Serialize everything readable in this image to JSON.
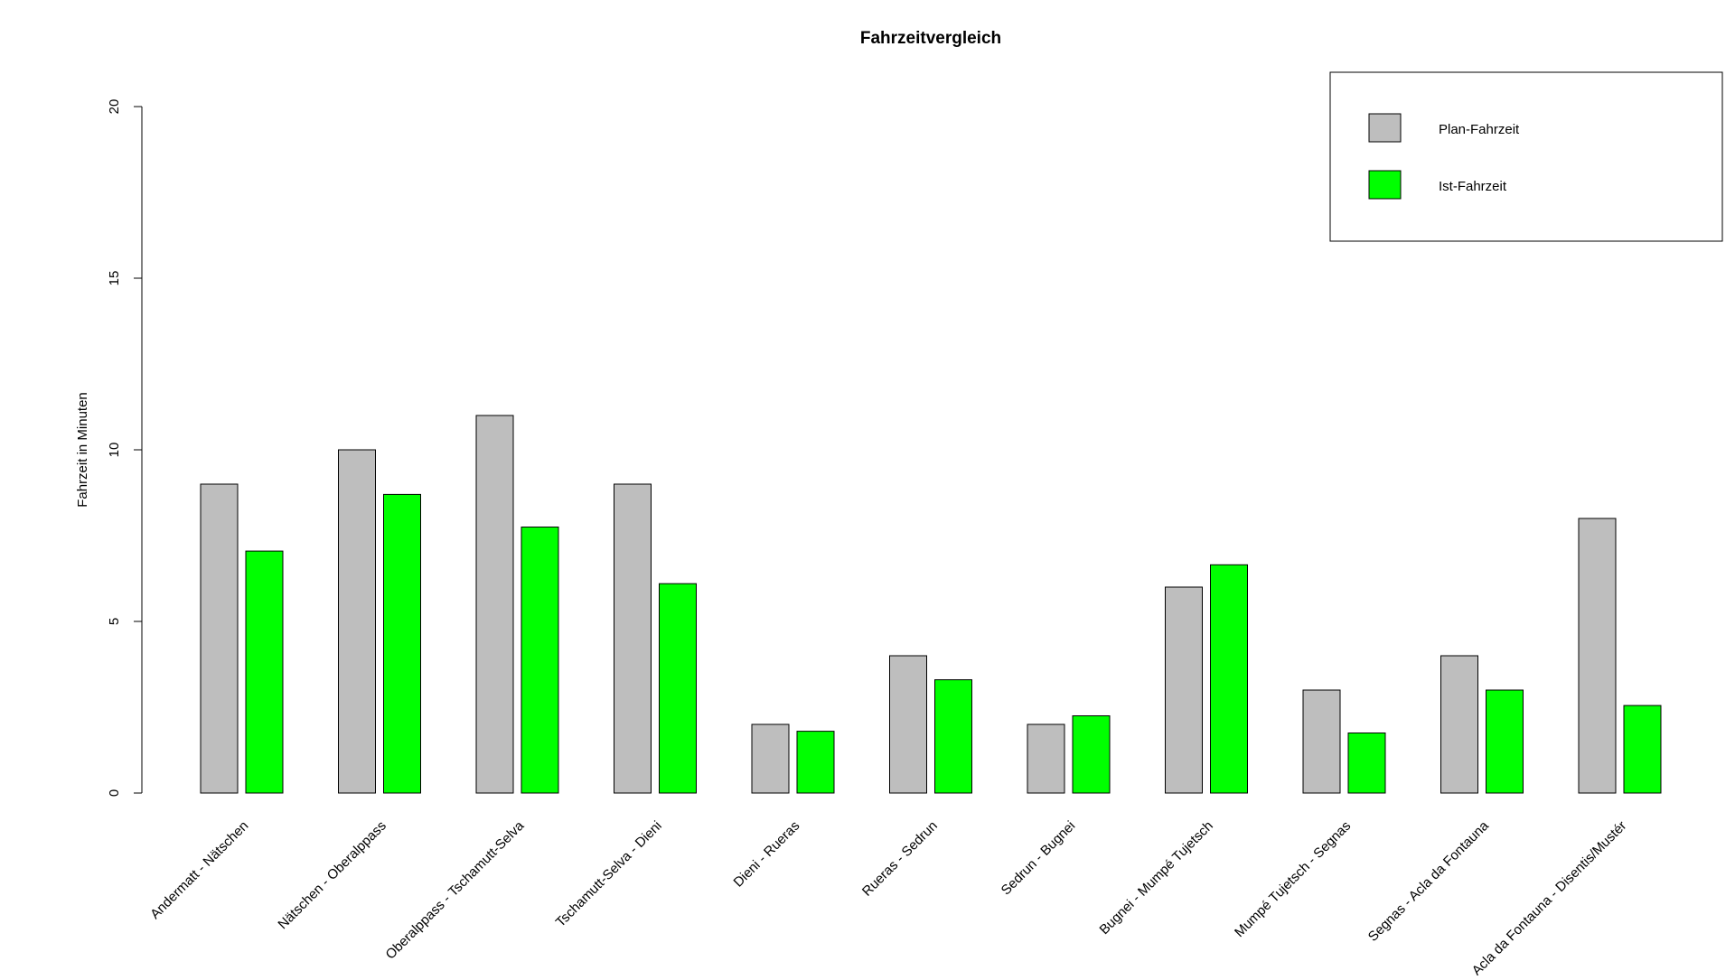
{
  "chart_data": {
    "type": "bar",
    "title": "Fahrzeitvergleich",
    "xlabel": "",
    "ylabel": "Fahrzeit in Minuten",
    "ylim": [
      0,
      20
    ],
    "yticks": [
      0,
      5,
      10,
      15,
      20
    ],
    "grid": false,
    "legend_position": "top-right",
    "categories": [
      "Andermatt - Nätschen",
      "Nätschen - Oberalppass",
      "Oberalppass - Tschamutt-Selva",
      "Tschamutt-Selva - Dieni",
      "Dieni - Rueras",
      "Rueras - Sedrun",
      "Sedrun - Bugnei",
      "Bugnei - Mumpé Tujetsch",
      "Mumpé Tujetsch - Segnas",
      "Segnas - Acla da Fontauna",
      "Acla da Fontauna - Disentis/Mustér"
    ],
    "series": [
      {
        "name": "Plan-Fahrzeit",
        "color": "#bebebe",
        "values": [
          9,
          10,
          11,
          9,
          2,
          4,
          2,
          6,
          3,
          4,
          8
        ]
      },
      {
        "name": "Ist-Fahrzeit",
        "color": "#00ff00",
        "values": [
          7.05,
          8.7,
          7.75,
          6.1,
          1.8,
          3.3,
          2.25,
          6.65,
          1.75,
          3.0,
          2.55
        ]
      }
    ]
  }
}
